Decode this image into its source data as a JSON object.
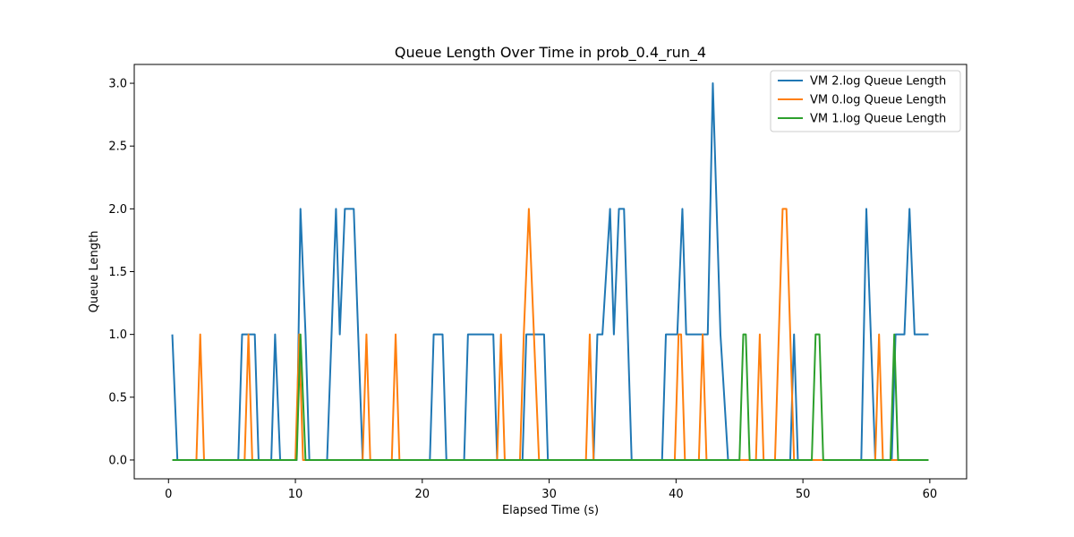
{
  "chart_data": {
    "type": "line",
    "title": "Queue Length Over Time in prob_0.4_run_4",
    "xlabel": "Elapsed Time (s)",
    "ylabel": "Queue Length",
    "xlim": [
      -2.7,
      62.9
    ],
    "ylim": [
      -0.15,
      3.15
    ],
    "xticks": [
      0,
      10,
      20,
      30,
      40,
      50,
      60
    ],
    "yticks": [
      0.0,
      0.5,
      1.0,
      1.5,
      2.0,
      2.5,
      3.0
    ],
    "xtick_labels": [
      "0",
      "10",
      "20",
      "30",
      "40",
      "50",
      "60"
    ],
    "ytick_labels": [
      "0.0",
      "0.5",
      "1.0",
      "1.5",
      "2.0",
      "2.5",
      "3.0"
    ],
    "grid": false,
    "legend_position": "top-right",
    "series": [
      {
        "name": "VM 2.log Queue Length",
        "color": "#1f77b4",
        "points": [
          [
            0.3,
            1
          ],
          [
            0.7,
            0
          ],
          [
            5.5,
            0
          ],
          [
            5.8,
            1
          ],
          [
            6.8,
            1
          ],
          [
            7.1,
            0
          ],
          [
            8.1,
            0
          ],
          [
            8.4,
            1
          ],
          [
            8.8,
            0
          ],
          [
            10.1,
            0
          ],
          [
            10.4,
            2
          ],
          [
            10.8,
            1
          ],
          [
            11.1,
            0
          ],
          [
            12.5,
            0
          ],
          [
            13.2,
            2
          ],
          [
            13.5,
            1
          ],
          [
            13.9,
            2
          ],
          [
            14.6,
            2
          ],
          [
            15.3,
            0
          ],
          [
            20.6,
            0
          ],
          [
            20.9,
            1
          ],
          [
            21.6,
            1
          ],
          [
            21.9,
            0
          ],
          [
            23.3,
            0
          ],
          [
            23.6,
            1
          ],
          [
            25.6,
            1
          ],
          [
            25.9,
            0
          ],
          [
            27.9,
            0
          ],
          [
            28.2,
            1
          ],
          [
            29.6,
            1
          ],
          [
            29.9,
            0
          ],
          [
            33.5,
            0
          ],
          [
            33.8,
            1
          ],
          [
            34.2,
            1
          ],
          [
            34.8,
            2
          ],
          [
            35.1,
            1
          ],
          [
            35.5,
            2
          ],
          [
            35.9,
            2
          ],
          [
            36.5,
            0
          ],
          [
            38.9,
            0
          ],
          [
            39.2,
            1
          ],
          [
            40.1,
            1
          ],
          [
            40.5,
            2
          ],
          [
            40.8,
            1
          ],
          [
            42.5,
            1
          ],
          [
            42.9,
            3
          ],
          [
            43.5,
            1
          ],
          [
            44.1,
            0
          ],
          [
            49.0,
            0
          ],
          [
            49.3,
            1
          ],
          [
            49.6,
            0
          ],
          [
            54.6,
            0
          ],
          [
            55.0,
            2
          ],
          [
            55.7,
            0
          ],
          [
            57.0,
            0
          ],
          [
            57.3,
            1
          ],
          [
            58.0,
            1
          ],
          [
            58.4,
            2
          ],
          [
            58.8,
            1
          ],
          [
            59.9,
            1
          ]
        ]
      },
      {
        "name": "VM 0.log Queue Length",
        "color": "#ff7f0e",
        "points": [
          [
            0.3,
            0
          ],
          [
            2.2,
            0
          ],
          [
            2.5,
            1
          ],
          [
            2.8,
            0
          ],
          [
            6.0,
            0
          ],
          [
            6.3,
            1
          ],
          [
            6.6,
            0
          ],
          [
            10.0,
            0
          ],
          [
            10.3,
            1
          ],
          [
            10.6,
            0
          ],
          [
            15.3,
            0
          ],
          [
            15.6,
            1
          ],
          [
            15.9,
            0
          ],
          [
            17.6,
            0
          ],
          [
            17.9,
            1
          ],
          [
            18.2,
            0
          ],
          [
            25.9,
            0
          ],
          [
            26.2,
            1
          ],
          [
            26.5,
            0
          ],
          [
            27.7,
            0
          ],
          [
            28.0,
            1
          ],
          [
            28.4,
            2
          ],
          [
            29.2,
            0
          ],
          [
            32.9,
            0
          ],
          [
            33.2,
            1
          ],
          [
            33.5,
            0
          ],
          [
            39.9,
            0
          ],
          [
            40.2,
            1
          ],
          [
            40.4,
            1
          ],
          [
            40.7,
            0
          ],
          [
            41.8,
            0
          ],
          [
            42.1,
            1
          ],
          [
            42.4,
            0
          ],
          [
            46.3,
            0
          ],
          [
            46.6,
            1
          ],
          [
            46.9,
            0
          ],
          [
            47.8,
            0
          ],
          [
            48.4,
            2
          ],
          [
            48.7,
            2
          ],
          [
            49.3,
            0
          ],
          [
            55.7,
            0
          ],
          [
            56.0,
            1
          ],
          [
            56.3,
            0
          ],
          [
            59.9,
            0
          ]
        ]
      },
      {
        "name": "VM 1.log Queue Length",
        "color": "#2ca02c",
        "points": [
          [
            0.3,
            0
          ],
          [
            10.1,
            0
          ],
          [
            10.4,
            1
          ],
          [
            10.8,
            0
          ],
          [
            45.0,
            0
          ],
          [
            45.3,
            1
          ],
          [
            45.5,
            1
          ],
          [
            45.8,
            0
          ],
          [
            50.7,
            0
          ],
          [
            51.0,
            1
          ],
          [
            51.3,
            1
          ],
          [
            51.6,
            0
          ],
          [
            56.9,
            0
          ],
          [
            57.2,
            1
          ],
          [
            57.5,
            0
          ],
          [
            59.9,
            0
          ]
        ]
      }
    ]
  }
}
